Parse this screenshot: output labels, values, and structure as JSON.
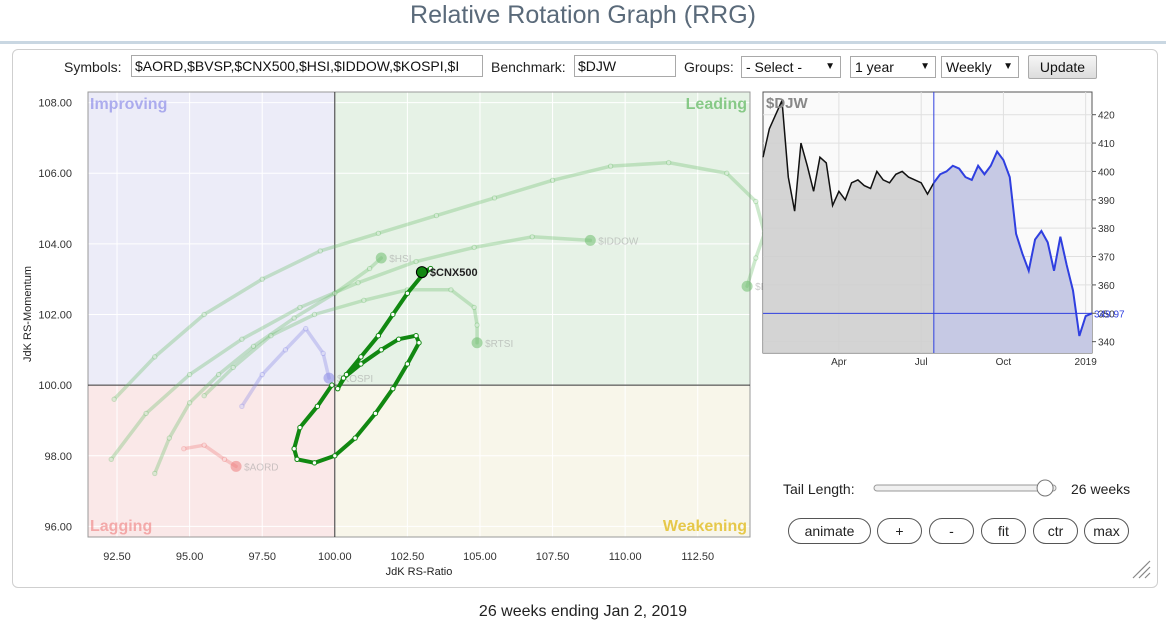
{
  "title": "Relative Rotation Graph (RRG)",
  "controls": {
    "symbols_label": "Symbols:",
    "symbols_value": "$AORD,$BVSP,$CNX500,$HSI,$IDDOW,$KOSPI,$I",
    "benchmark_label": "Benchmark:",
    "benchmark_value": "$DJW",
    "groups_label": "Groups:",
    "groups_value": "- Select -",
    "period_value": "1 year",
    "interval_value": "Weekly",
    "update_label": "Update"
  },
  "quadrants": {
    "improving": "Improving",
    "leading": "Leading",
    "lagging": "Lagging",
    "weakening": "Weakening",
    "colors": {
      "improving": "#7f7fe6",
      "leading": "#6fbf6f",
      "lagging": "#ef7f7f",
      "weakening": "#e6c84a"
    }
  },
  "rrg_axes": {
    "xlabel": "JdK RS-Ratio",
    "ylabel": "JdK RS-Momentum",
    "x_ticks": [
      "92.50",
      "95.00",
      "97.50",
      "100.00",
      "102.50",
      "105.00",
      "107.50",
      "110.00",
      "112.50"
    ],
    "y_ticks": [
      "108.00",
      "106.00",
      "104.00",
      "102.00",
      "100.00",
      "98.00",
      "96.00"
    ]
  },
  "securities": [
    {
      "symbol": "$CNX500",
      "highlighted": true,
      "color": "#118811",
      "tail": [
        [
          99.9,
          100.0
        ],
        [
          99.4,
          99.4
        ],
        [
          98.8,
          98.8
        ],
        [
          98.6,
          98.2
        ],
        [
          98.7,
          97.9
        ],
        [
          99.3,
          97.8
        ],
        [
          100.0,
          98.0
        ],
        [
          100.7,
          98.5
        ],
        [
          101.4,
          99.2
        ],
        [
          102.0,
          99.9
        ],
        [
          102.5,
          100.6
        ],
        [
          102.9,
          101.2
        ],
        [
          102.8,
          101.4
        ],
        [
          102.2,
          101.3
        ],
        [
          101.6,
          101.0
        ],
        [
          100.9,
          100.6
        ],
        [
          100.3,
          100.2
        ],
        [
          100.1,
          99.9
        ],
        [
          100.4,
          100.3
        ],
        [
          100.9,
          100.8
        ],
        [
          101.5,
          101.4
        ],
        [
          102.0,
          102.0
        ],
        [
          102.5,
          102.6
        ],
        [
          103.0,
          103.1
        ],
        [
          103.3,
          103.3
        ],
        [
          103.0,
          103.2
        ]
      ]
    },
    {
      "symbol": "$BVSP",
      "highlighted": false,
      "color": "#6fbf6f",
      "tail": [
        [
          92.4,
          99.6
        ],
        [
          93.8,
          100.8
        ],
        [
          95.5,
          102.0
        ],
        [
          97.5,
          103.0
        ],
        [
          99.5,
          103.8
        ],
        [
          101.5,
          104.3
        ],
        [
          103.5,
          104.8
        ],
        [
          105.5,
          105.3
        ],
        [
          107.5,
          105.8
        ],
        [
          109.5,
          106.2
        ],
        [
          111.5,
          106.3
        ],
        [
          113.5,
          106.0
        ],
        [
          114.5,
          105.2
        ],
        [
          114.8,
          104.3
        ],
        [
          114.5,
          103.6
        ],
        [
          114.2,
          102.8
        ]
      ]
    },
    {
      "symbol": "$IDDOW",
      "highlighted": false,
      "color": "#6fbf6f",
      "tail": [
        [
          92.3,
          97.9
        ],
        [
          93.5,
          99.2
        ],
        [
          95.0,
          100.3
        ],
        [
          96.8,
          101.3
        ],
        [
          98.8,
          102.2
        ],
        [
          100.8,
          102.9
        ],
        [
          102.8,
          103.5
        ],
        [
          104.8,
          103.9
        ],
        [
          106.8,
          104.2
        ],
        [
          108.8,
          104.1
        ]
      ]
    },
    {
      "symbol": "$HSI",
      "highlighted": false,
      "color": "#6fbf6f",
      "tail": [
        [
          93.8,
          97.5
        ],
        [
          94.3,
          98.5
        ],
        [
          95.0,
          99.5
        ],
        [
          96.0,
          100.3
        ],
        [
          97.2,
          101.1
        ],
        [
          98.6,
          101.9
        ],
        [
          100.0,
          102.6
        ],
        [
          101.2,
          103.3
        ],
        [
          101.6,
          103.6
        ]
      ]
    },
    {
      "symbol": "$RTSI",
      "highlighted": false,
      "color": "#6fbf6f",
      "tail": [
        [
          95.5,
          99.7
        ],
        [
          96.5,
          100.5
        ],
        [
          97.8,
          101.4
        ],
        [
          99.3,
          102.0
        ],
        [
          101.0,
          102.4
        ],
        [
          102.5,
          102.7
        ],
        [
          104.0,
          102.7
        ],
        [
          104.8,
          102.2
        ],
        [
          104.9,
          101.7
        ],
        [
          104.9,
          101.2
        ]
      ]
    },
    {
      "symbol": "$KOSPI",
      "highlighted": false,
      "color": "#8a8ae6",
      "tail": [
        [
          96.8,
          99.4
        ],
        [
          97.5,
          100.3
        ],
        [
          98.3,
          101.0
        ],
        [
          99.0,
          101.6
        ],
        [
          99.6,
          100.9
        ],
        [
          99.8,
          100.2
        ]
      ]
    },
    {
      "symbol": "$AORD",
      "highlighted": false,
      "color": "#ef7f7f",
      "tail": [
        [
          94.8,
          98.2
        ],
        [
          95.5,
          98.3
        ],
        [
          96.2,
          97.9
        ],
        [
          96.6,
          97.7
        ]
      ]
    }
  ],
  "benchmark_chart": {
    "symbol": "$DJW",
    "last_value": "349.97",
    "y_ticks": [
      "420",
      "410",
      "400",
      "390",
      "380",
      "370",
      "360",
      "350",
      "340"
    ],
    "x_ticks": [
      "Apr",
      "Jul",
      "Oct",
      "2019"
    ],
    "ylim": [
      336,
      428
    ],
    "tail_start_index": 27,
    "values": [
      405,
      415,
      420,
      425,
      398,
      386,
      410,
      402,
      393,
      405,
      403,
      388,
      393,
      390,
      396,
      397,
      395,
      394,
      400,
      397,
      396,
      399,
      400,
      398,
      397,
      396,
      392,
      396,
      399,
      400,
      402,
      401,
      398,
      397,
      402,
      399,
      402,
      407,
      404,
      398,
      378,
      371,
      365,
      376,
      379,
      375,
      365,
      377,
      367,
      358,
      342,
      349,
      350
    ]
  },
  "tail_length": {
    "label": "Tail Length:",
    "value_text": "26 weeks",
    "fraction": 0.94
  },
  "buttons": {
    "animate": "animate",
    "plus": "+",
    "minus": "-",
    "fit": "fit",
    "ctr": "ctr",
    "max": "max"
  },
  "footer": "26 weeks ending Jan 2, 2019"
}
